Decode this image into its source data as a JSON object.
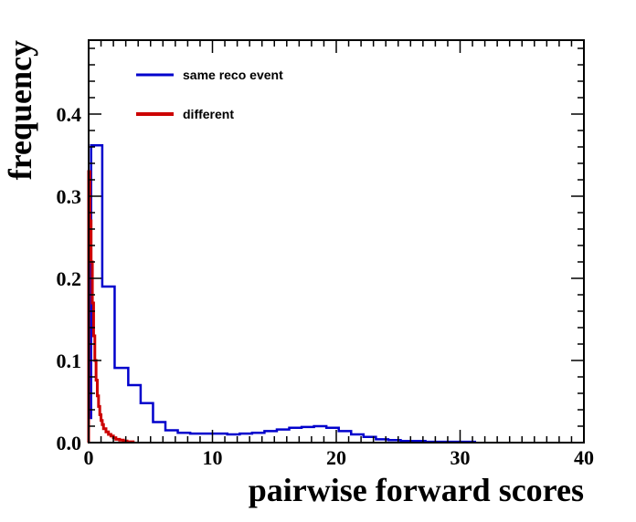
{
  "chart_data": {
    "type": "histogram",
    "title": "",
    "xlabel": "pairwise forward scores",
    "ylabel": "frequency",
    "xlim": [
      0,
      40
    ],
    "ylim": [
      0,
      0.49
    ],
    "x_ticks": [
      0,
      10,
      20,
      30,
      40
    ],
    "y_ticks": [
      0.0,
      0.1,
      0.2,
      0.3,
      0.4
    ],
    "y_tick_labels": [
      "0.0",
      "0.1",
      "0.2",
      "0.3",
      "0.4"
    ],
    "grid": false,
    "legend_position": "top-left",
    "series": [
      {
        "name": "same reco event",
        "color": "#0000cc",
        "bin_edges": [
          0,
          0.2,
          1.1,
          2.1,
          3.2,
          4.2,
          5.2,
          6.2,
          7.2,
          8.2,
          9.2,
          10.2,
          11.2,
          12.2,
          13.2,
          14.2,
          15.2,
          16.2,
          17.2,
          18.2,
          19.2,
          20.2,
          21.2,
          22.2,
          23.2,
          24.2,
          25.2,
          26.2,
          27.2,
          28.2,
          29.2,
          30.2,
          31.2
        ],
        "values": [
          0.03,
          0.362,
          0.19,
          0.091,
          0.07,
          0.048,
          0.025,
          0.015,
          0.012,
          0.011,
          0.011,
          0.011,
          0.01,
          0.011,
          0.012,
          0.014,
          0.016,
          0.018,
          0.019,
          0.02,
          0.018,
          0.014,
          0.01,
          0.007,
          0.004,
          0.003,
          0.002,
          0.002,
          0.001,
          0.001,
          0.001,
          0.001
        ]
      },
      {
        "name": "different",
        "color": "#cc0000",
        "bin_edges": [
          0,
          0.1,
          0.2,
          0.3,
          0.4,
          0.5,
          0.6,
          0.7,
          0.8,
          0.9,
          1.0,
          1.1,
          1.2,
          1.4,
          1.6,
          1.8,
          2.0,
          2.2,
          2.5,
          2.8,
          3.1,
          3.6
        ],
        "values": [
          0.33,
          0.27,
          0.22,
          0.17,
          0.13,
          0.1,
          0.076,
          0.057,
          0.044,
          0.034,
          0.027,
          0.022,
          0.017,
          0.013,
          0.01,
          0.008,
          0.006,
          0.004,
          0.003,
          0.002,
          0.001
        ]
      }
    ]
  }
}
